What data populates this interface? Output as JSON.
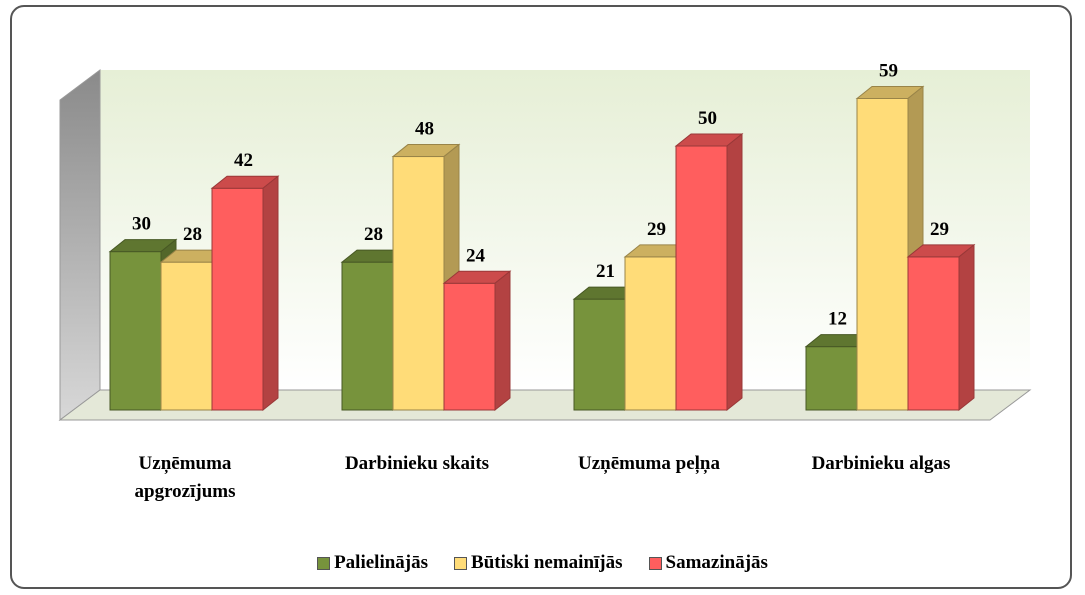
{
  "chart_data": {
    "type": "bar3d",
    "categories": [
      "Uzņēmuma apgrozījums",
      "Darbinieku skaits",
      "Uzņēmuma peļņa",
      "Darbinieku algas"
    ],
    "series": [
      {
        "name": "Palielinājās",
        "color": "#77933c",
        "values": [
          30,
          28,
          21,
          12
        ]
      },
      {
        "name": "Būtiski nemainījās",
        "color": "#ffdc78",
        "values": [
          28,
          48,
          29,
          59
        ]
      },
      {
        "name": "Samazinājās",
        "color": "#ff5e5e",
        "values": [
          42,
          24,
          50,
          29
        ]
      }
    ],
    "legend": "bottom"
  }
}
